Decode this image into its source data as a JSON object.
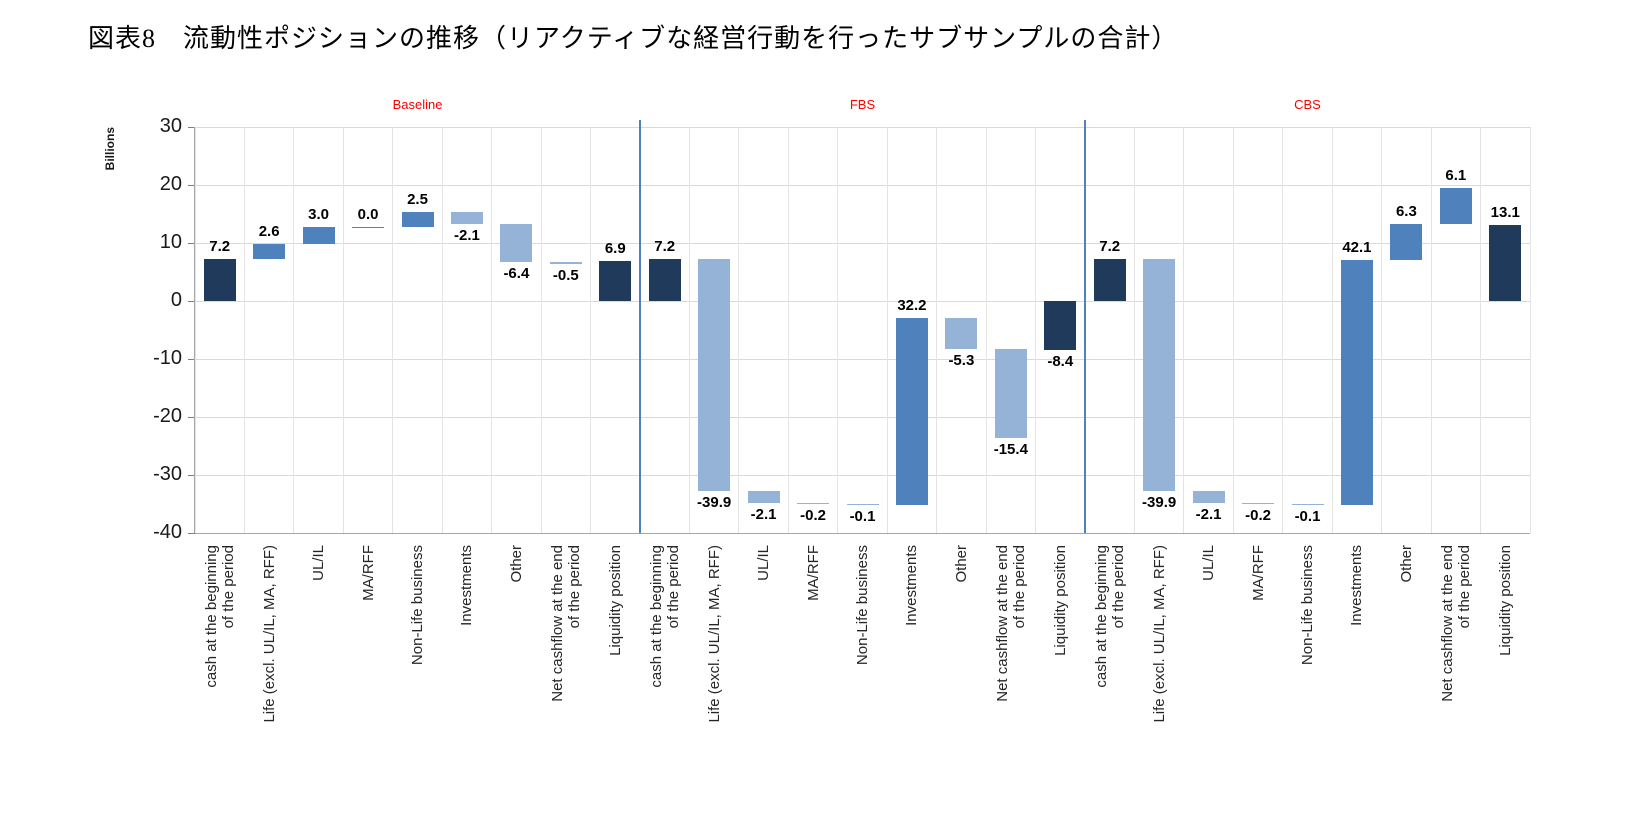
{
  "title": "図表8　流動性ポジションの推移（リアクティブな経営行動を行ったサブサンプルの合計）",
  "chart_data": {
    "type": "bar",
    "subtype": "waterfall",
    "title": "図表8　流動性ポジションの推移（リアクティブな経営行動を行ったサブサンプルの合計）",
    "xlabel": "",
    "ylabel": "Billions",
    "ylim": [
      -40,
      30
    ],
    "yticks": [
      30,
      20,
      10,
      0,
      -10,
      -20,
      -30,
      -40
    ],
    "grid": true,
    "legend": "none",
    "categories": [
      "cash at the beginning\nof the period",
      "Life (excl. UL/IL, MA, RFF)",
      "UL/IL",
      "MA/RFF",
      "Non-Life business",
      "Investments",
      "Other",
      "Net cashflow at the end\nof the period",
      "Liquidity position"
    ],
    "bar_kinds": [
      "total",
      "flow",
      "flow",
      "flow",
      "flow",
      "flow",
      "flow",
      "flow",
      "total"
    ],
    "panels": [
      {
        "label": "Baseline",
        "values": [
          7.2,
          2.6,
          3.0,
          0.0,
          2.5,
          -2.1,
          -6.4,
          -0.5,
          6.9
        ]
      },
      {
        "label": "FBS",
        "values": [
          7.2,
          -39.9,
          -2.1,
          -0.2,
          -0.1,
          32.2,
          -5.3,
          -15.4,
          -8.4
        ]
      },
      {
        "label": "CBS",
        "values": [
          7.2,
          -39.9,
          -2.1,
          -0.2,
          -0.1,
          42.1,
          6.3,
          6.1,
          13.1
        ]
      }
    ],
    "colors": {
      "total_bar": "#1f3a5a",
      "positive_bar": "#4f81bd",
      "negative_bar": "#95b3d7",
      "panel_label": "#ff0000",
      "separator": "#4f81bd",
      "gridline": "#d9d9d9",
      "axis": "#a6a6a6",
      "value_label": "#000000"
    }
  }
}
